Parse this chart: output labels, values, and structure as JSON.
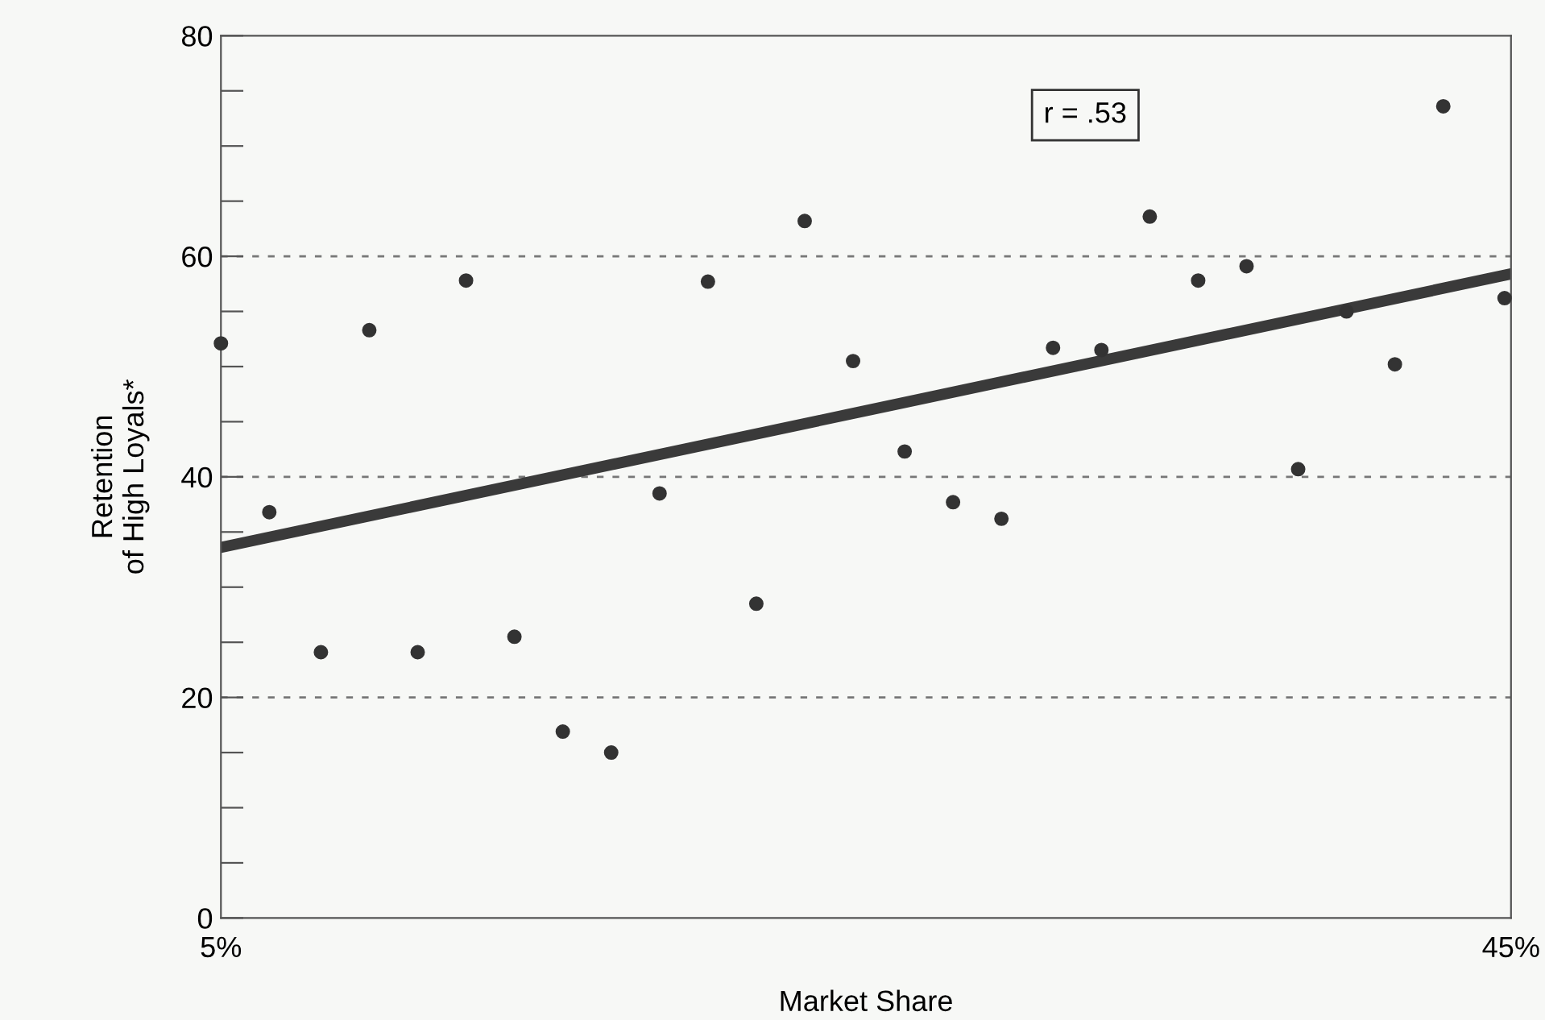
{
  "chart_data": {
    "type": "scatter",
    "xlabel": "Market Share",
    "ylabel": "Retention\nof High Loyals*",
    "xlim": [
      5,
      45
    ],
    "xticks": [
      {
        "value": 5,
        "label": "5%"
      },
      {
        "value": 45,
        "label": "45%"
      }
    ],
    "ylim": [
      0,
      80
    ],
    "yticks": [
      0,
      {
        "value": 5,
        "label": null
      },
      {
        "value": 10,
        "label": null
      },
      {
        "value": 15,
        "label": null
      },
      20,
      {
        "value": 25,
        "label": null
      },
      {
        "value": 30,
        "label": null
      },
      {
        "value": 35,
        "label": null
      },
      40,
      {
        "value": 45,
        "label": null
      },
      {
        "value": 50,
        "label": null
      },
      {
        "value": 55,
        "label": null
      },
      60,
      {
        "value": 65,
        "label": null
      },
      {
        "value": 70,
        "label": null
      },
      {
        "value": 75,
        "label": null
      },
      80
    ],
    "ref_lines": [
      {
        "axis": "y",
        "value": 20,
        "label": null,
        "color": "#777777",
        "line_style": "dashed"
      },
      {
        "axis": "y",
        "value": 40,
        "label": null,
        "color": "#777777",
        "line_style": "dashed"
      },
      {
        "axis": "y",
        "value": 60,
        "label": null,
        "color": "#777777",
        "line_style": "dashed"
      }
    ],
    "annotations": [
      "r = .53"
    ],
    "series": [
      {
        "color": "#333333",
        "marker": "circle",
        "x": [
          5.0,
          6.5,
          8.1,
          9.6,
          11.1,
          12.6,
          14.1,
          15.6,
          17.1,
          18.6,
          20.1,
          21.6,
          23.1,
          24.6,
          26.2,
          27.7,
          29.2,
          30.8,
          32.3,
          33.8,
          35.3,
          36.8,
          38.4,
          39.9,
          41.4,
          42.9,
          44.8
        ],
        "values": [
          52.1,
          36.8,
          24.1,
          53.3,
          24.1,
          57.8,
          25.5,
          16.9,
          15.0,
          38.5,
          57.7,
          28.5,
          63.2,
          50.5,
          42.3,
          37.7,
          36.2,
          51.7,
          51.5,
          63.6,
          57.8,
          59.1,
          40.7,
          55.0,
          50.2,
          73.6,
          56.2
        ]
      },
      {
        "type": "line",
        "color": "#3a3a3a",
        "line_style": "solid",
        "x": [
          5,
          45
        ],
        "values": [
          33.6,
          58.4
        ]
      }
    ]
  }
}
